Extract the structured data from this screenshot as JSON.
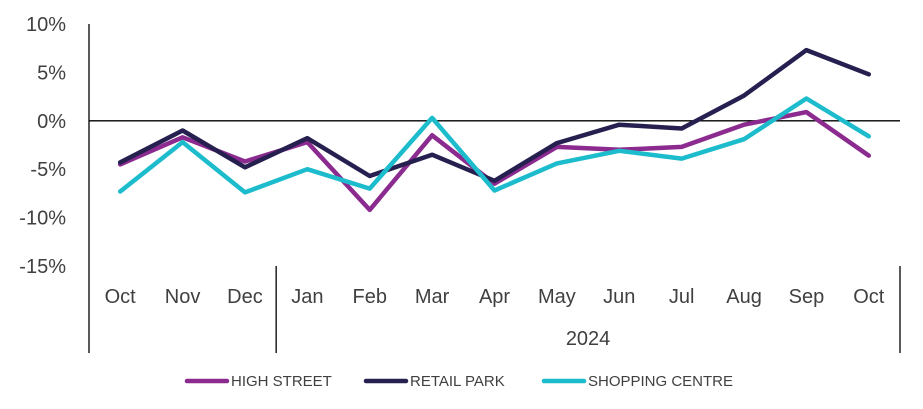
{
  "chart_data": {
    "type": "line",
    "categories": [
      "Oct",
      "Nov",
      "Dec",
      "Jan",
      "Feb",
      "Mar",
      "Apr",
      "May",
      "Jun",
      "Jul",
      "Aug",
      "Sep",
      "Oct"
    ],
    "group_labels": [
      {
        "label": "",
        "start": 0,
        "end": 2
      },
      {
        "label": "2024",
        "start": 3,
        "end": 12
      }
    ],
    "ylim": [
      -15,
      10
    ],
    "yticks": [
      10,
      5,
      0,
      -5,
      -10,
      -15
    ],
    "ytick_labels": [
      "10%",
      "5%",
      "0%",
      "-5%",
      "-10%",
      "-15%"
    ],
    "series": [
      {
        "name": "HIGH STREET",
        "color": "#8B2A8F",
        "values": [
          -4.5,
          -1.7,
          -4.2,
          -2.2,
          -9.2,
          -1.5,
          -6.5,
          -2.7,
          -3.0,
          -2.7,
          -0.4,
          0.9,
          -3.6
        ]
      },
      {
        "name": "RETAIL PARK",
        "color": "#262050",
        "values": [
          -4.3,
          -1.0,
          -4.8,
          -1.8,
          -5.7,
          -3.5,
          -6.2,
          -2.3,
          -0.4,
          -0.8,
          2.6,
          7.3,
          4.8
        ]
      },
      {
        "name": "SHOPPING CENTRE",
        "color": "#1DBCCD",
        "values": [
          -7.3,
          -2.2,
          -7.4,
          -5.0,
          -7.0,
          0.3,
          -7.2,
          -4.4,
          -3.1,
          -3.9,
          -1.9,
          2.3,
          -1.6
        ]
      }
    ],
    "legend_position": "bottom",
    "grid": false
  }
}
